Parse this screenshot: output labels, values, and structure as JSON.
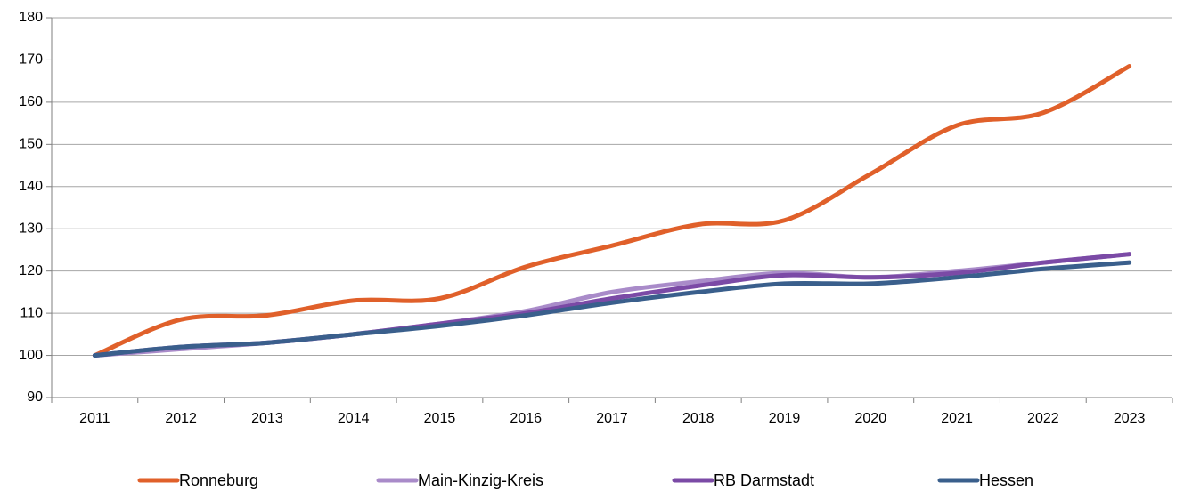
{
  "chart_data": {
    "type": "line",
    "categories": [
      "2011",
      "2012",
      "2013",
      "2014",
      "2015",
      "2016",
      "2017",
      "2018",
      "2019",
      "2020",
      "2021",
      "2022",
      "2023"
    ],
    "series": [
      {
        "name": "Ronneburg",
        "color": "#e0602a",
        "values": [
          100,
          108.5,
          109.5,
          113,
          113.5,
          121,
          126,
          131,
          132,
          143,
          154.5,
          157.5,
          168.5
        ]
      },
      {
        "name": "Main-Kinzig-Kreis",
        "color": "#a98bc9",
        "values": [
          100,
          101.5,
          103,
          105,
          107.5,
          110.5,
          115,
          117.5,
          119.5,
          118.5,
          120,
          122,
          124
        ]
      },
      {
        "name": "RB Darmstadt",
        "color": "#7b4aa6",
        "values": [
          100,
          102,
          103,
          105,
          107.5,
          110,
          113.5,
          116.5,
          119,
          118.5,
          119.5,
          122,
          124
        ]
      },
      {
        "name": "Hessen",
        "color": "#3a5f8c",
        "values": [
          100,
          102,
          103,
          105,
          107,
          109.5,
          112.5,
          115,
          117,
          117,
          118.5,
          120.5,
          122
        ]
      }
    ],
    "ylim": [
      90,
      180
    ],
    "yticks": [
      90,
      100,
      110,
      120,
      130,
      140,
      150,
      160,
      170,
      180
    ],
    "grid": true,
    "legend": "bottom"
  }
}
